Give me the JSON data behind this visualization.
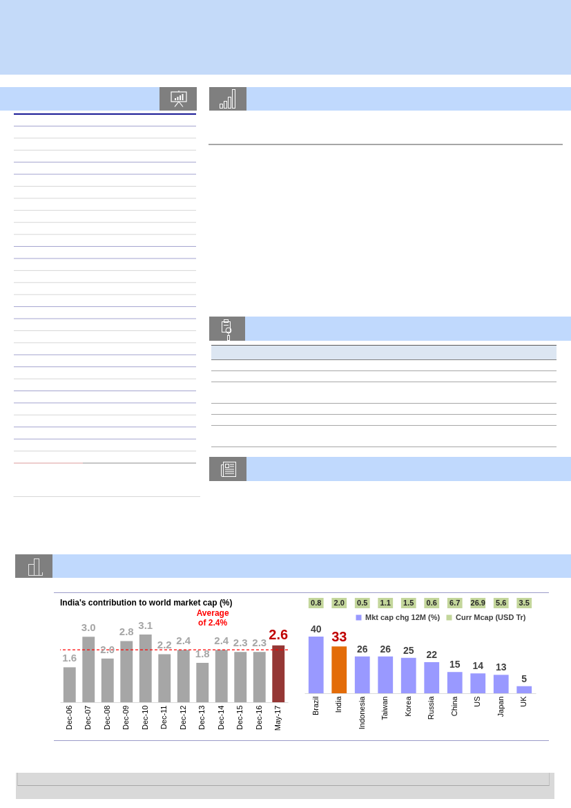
{
  "chart_data": [
    {
      "type": "bar",
      "title": "India's contribution to world market cap (%)",
      "categories": [
        "Dec-06",
        "Dec-07",
        "Dec-08",
        "Dec-09",
        "Dec-10",
        "Dec-11",
        "Dec-12",
        "Dec-13",
        "Dec-14",
        "Dec-15",
        "Dec-16",
        "May-17"
      ],
      "values": [
        1.6,
        3.0,
        2.0,
        2.8,
        3.1,
        2.2,
        2.4,
        1.8,
        2.4,
        2.3,
        2.3,
        2.6
      ],
      "value_labels": [
        "1.6",
        "3.0",
        "2.0",
        "2.8",
        "3.1",
        "2.2",
        "2.4",
        "1.8",
        "2.4",
        "2.3",
        "2.3",
        "2.6"
      ],
      "colors": [
        "#a6a6a6",
        "#a6a6a6",
        "#a6a6a6",
        "#a6a6a6",
        "#a6a6a6",
        "#a6a6a6",
        "#a6a6a6",
        "#a6a6a6",
        "#a6a6a6",
        "#a6a6a6",
        "#a6a6a6",
        "#953735"
      ],
      "ref_lines": [
        {
          "axis": "y",
          "value": 2.4,
          "label": "Average of 2.4%",
          "color": "#ff0000",
          "line_style": "dashed"
        }
      ],
      "tick_labels": "x"
    },
    {
      "type": "other",
      "categories": [
        null,
        null,
        null,
        null,
        null,
        null,
        null,
        null,
        null,
        null
      ],
      "series": [
        {
          "name": "Curr Mcap (USD Tr)",
          "color": "#c3d69b",
          "values": [
            0.8,
            2.0,
            0.5,
            1.1,
            1.5,
            0.6,
            6.7,
            26.9,
            5.6,
            3.5
          ],
          "value_labels": [
            "0.8",
            "2.0",
            "0.5",
            "1.1",
            "1.5",
            "0.6",
            "6.7",
            "26.9",
            "5.6",
            "3.5"
          ]
        }
      ],
      "legend": "bottom"
    },
    {
      "type": "bar",
      "categories": [
        "Brazil",
        "India",
        "Indonesia",
        "Taiwan",
        "Korea",
        "Russia",
        "China",
        "US",
        "Japan",
        "UK"
      ],
      "series": [
        {
          "name": "Mkt cap chg 12M (%)",
          "color": "#9999ff",
          "colors": [
            "#9999ff",
            "#e36c09",
            "#9999ff",
            "#9999ff",
            "#9999ff",
            "#9999ff",
            "#9999ff",
            "#9999ff",
            "#9999ff",
            "#9999ff"
          ],
          "values": [
            40,
            33,
            26,
            26,
            25,
            22,
            15,
            14,
            13,
            5
          ]
        }
      ],
      "data_labels": true,
      "legend": "top",
      "tick_labels": "x"
    }
  ]
}
